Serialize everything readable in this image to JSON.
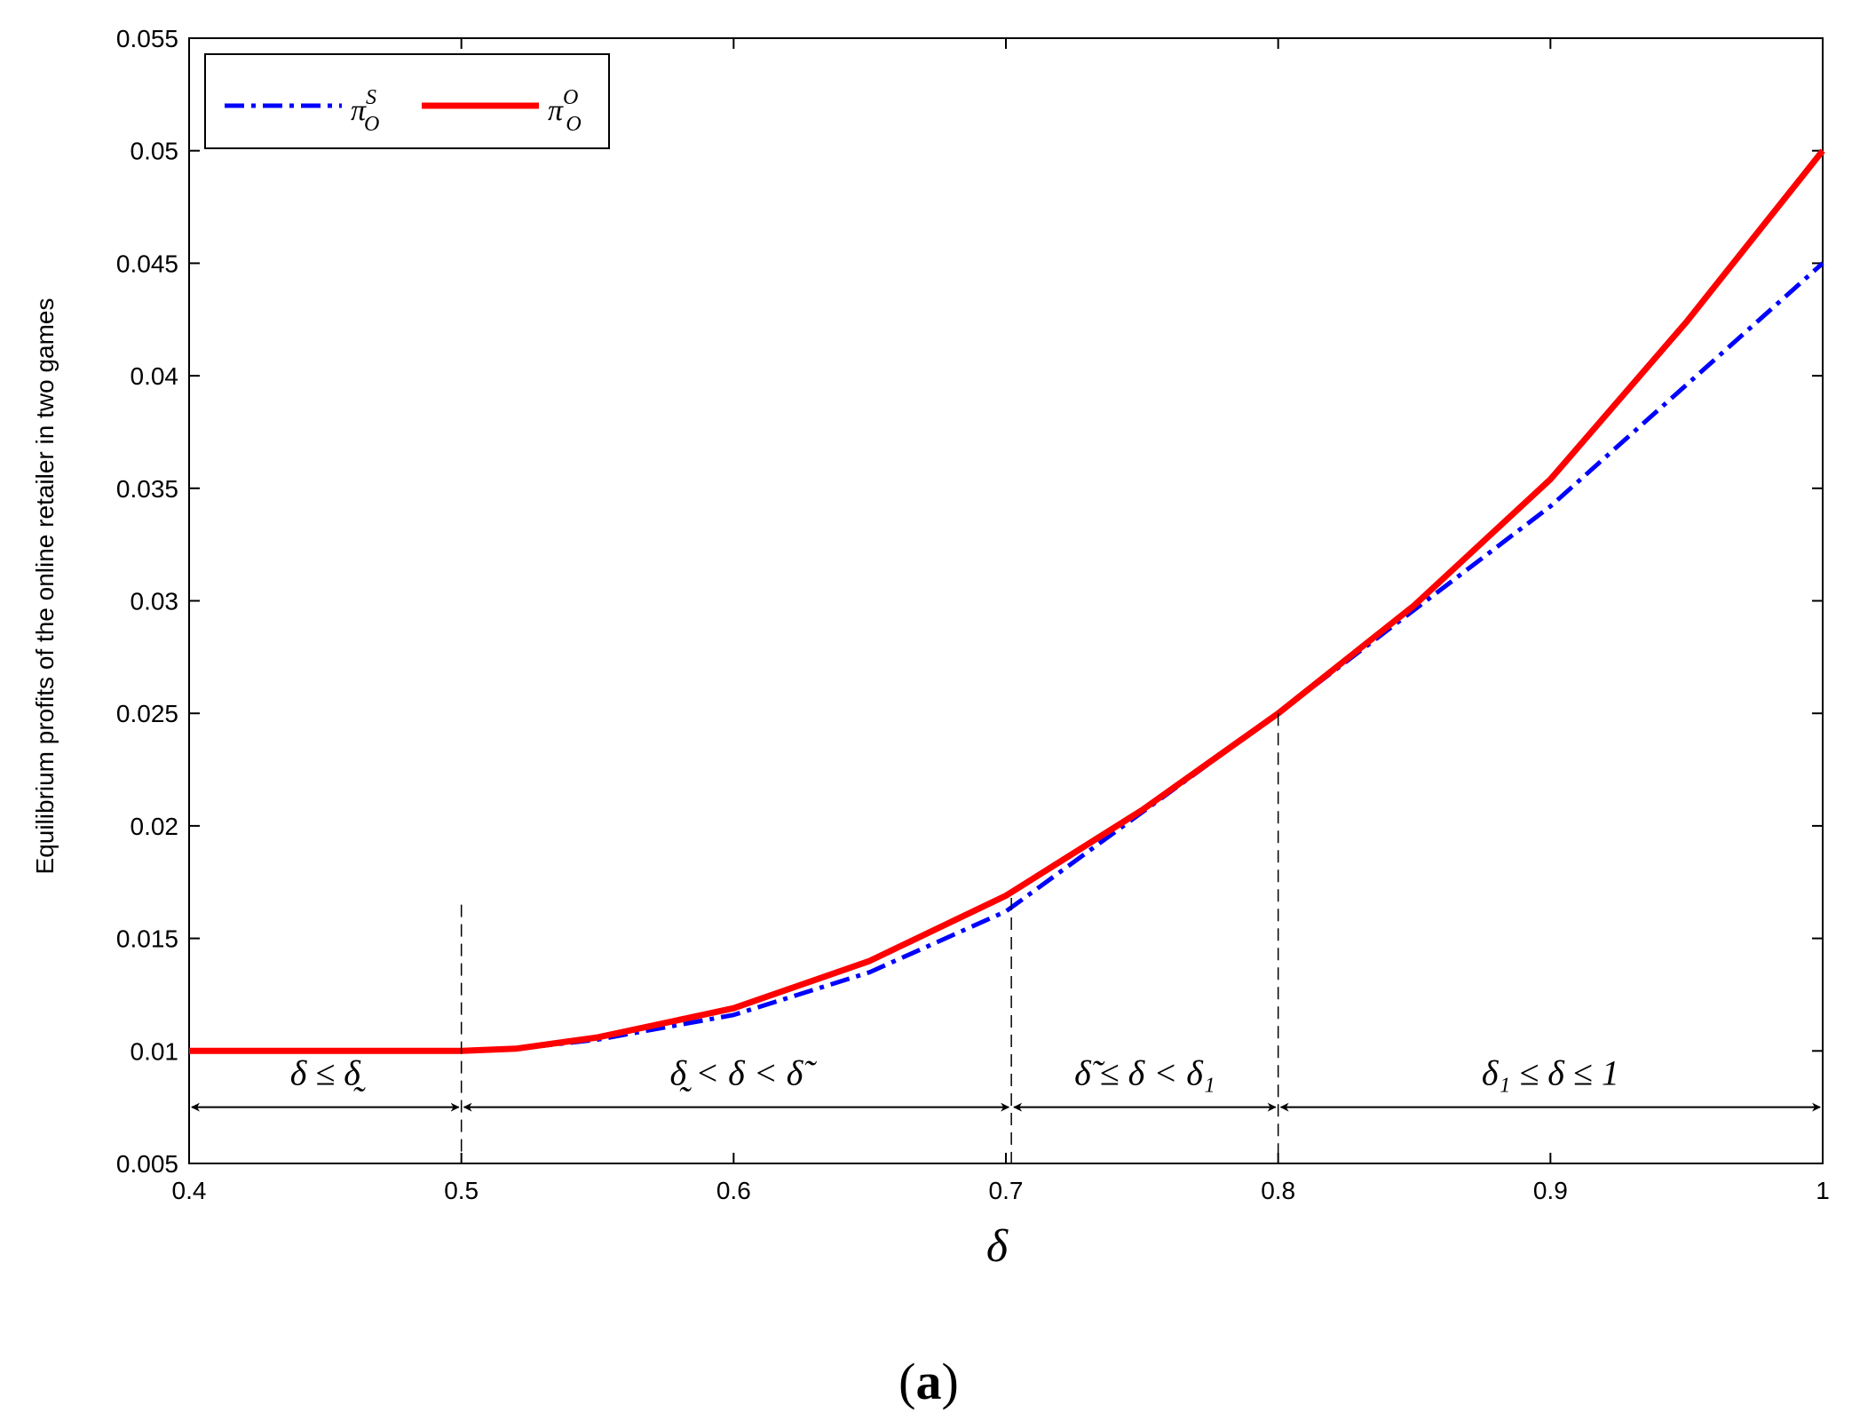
{
  "chart_data": {
    "type": "line",
    "xlabel": "δ",
    "ylabel": "Equilibrium profits of the online retailer in two games",
    "xlim": [
      0.4,
      1.0
    ],
    "ylim": [
      0.005,
      0.055
    ],
    "x_ticks": [
      "0.4",
      "0.5",
      "0.6",
      "0.7",
      "0.8",
      "0.9",
      "1"
    ],
    "y_ticks": [
      "0.005",
      "0.01",
      "0.015",
      "0.02",
      "0.025",
      "0.03",
      "0.035",
      "0.04",
      "0.045",
      "0.05",
      "0.055"
    ],
    "grid": false,
    "legend_position": "top-left",
    "series": [
      {
        "name": "π_O^S",
        "name_main": "π",
        "name_sup": "S",
        "name_sub": "O",
        "color": "#0000ff",
        "style": "dash-dot",
        "x": [
          0.4,
          0.5,
          0.52,
          0.55,
          0.6,
          0.65,
          0.7,
          0.75,
          0.8,
          0.85,
          0.9,
          0.95,
          1.0
        ],
        "y": [
          0.01,
          0.01,
          0.0101,
          0.0105,
          0.0116,
          0.0135,
          0.0162,
          0.0206,
          0.025,
          0.0296,
          0.0342,
          0.0396,
          0.045
        ]
      },
      {
        "name": "π_O^O",
        "name_main": "π",
        "name_sup": "O",
        "name_sub": "O",
        "color": "#ff0000",
        "style": "solid",
        "x": [
          0.4,
          0.5,
          0.52,
          0.55,
          0.6,
          0.65,
          0.7,
          0.75,
          0.8,
          0.85,
          0.9,
          0.95,
          1.0
        ],
        "y": [
          0.01,
          0.01,
          0.0101,
          0.0106,
          0.0119,
          0.014,
          0.0169,
          0.0207,
          0.025,
          0.0298,
          0.0354,
          0.0424,
          0.05
        ]
      }
    ],
    "boundaries": [
      0.5,
      0.702,
      0.8
    ],
    "regions": [
      {
        "label": "δ ≤ δ̰",
        "from": 0.4,
        "to": 0.5
      },
      {
        "label": "δ̰ < δ < δ̃",
        "from": 0.5,
        "to": 0.702
      },
      {
        "label": "δ̃ ≤ δ < δ₁",
        "from": 0.702,
        "to": 0.8
      },
      {
        "label": "δ₁ ≤ δ ≤ 1",
        "from": 0.8,
        "to": 1.0
      }
    ],
    "region_arrow_y": 0.0075,
    "region_label_y": 0.0085
  },
  "panel_label": {
    "open": "(",
    "letter": "a",
    "close": ")"
  }
}
